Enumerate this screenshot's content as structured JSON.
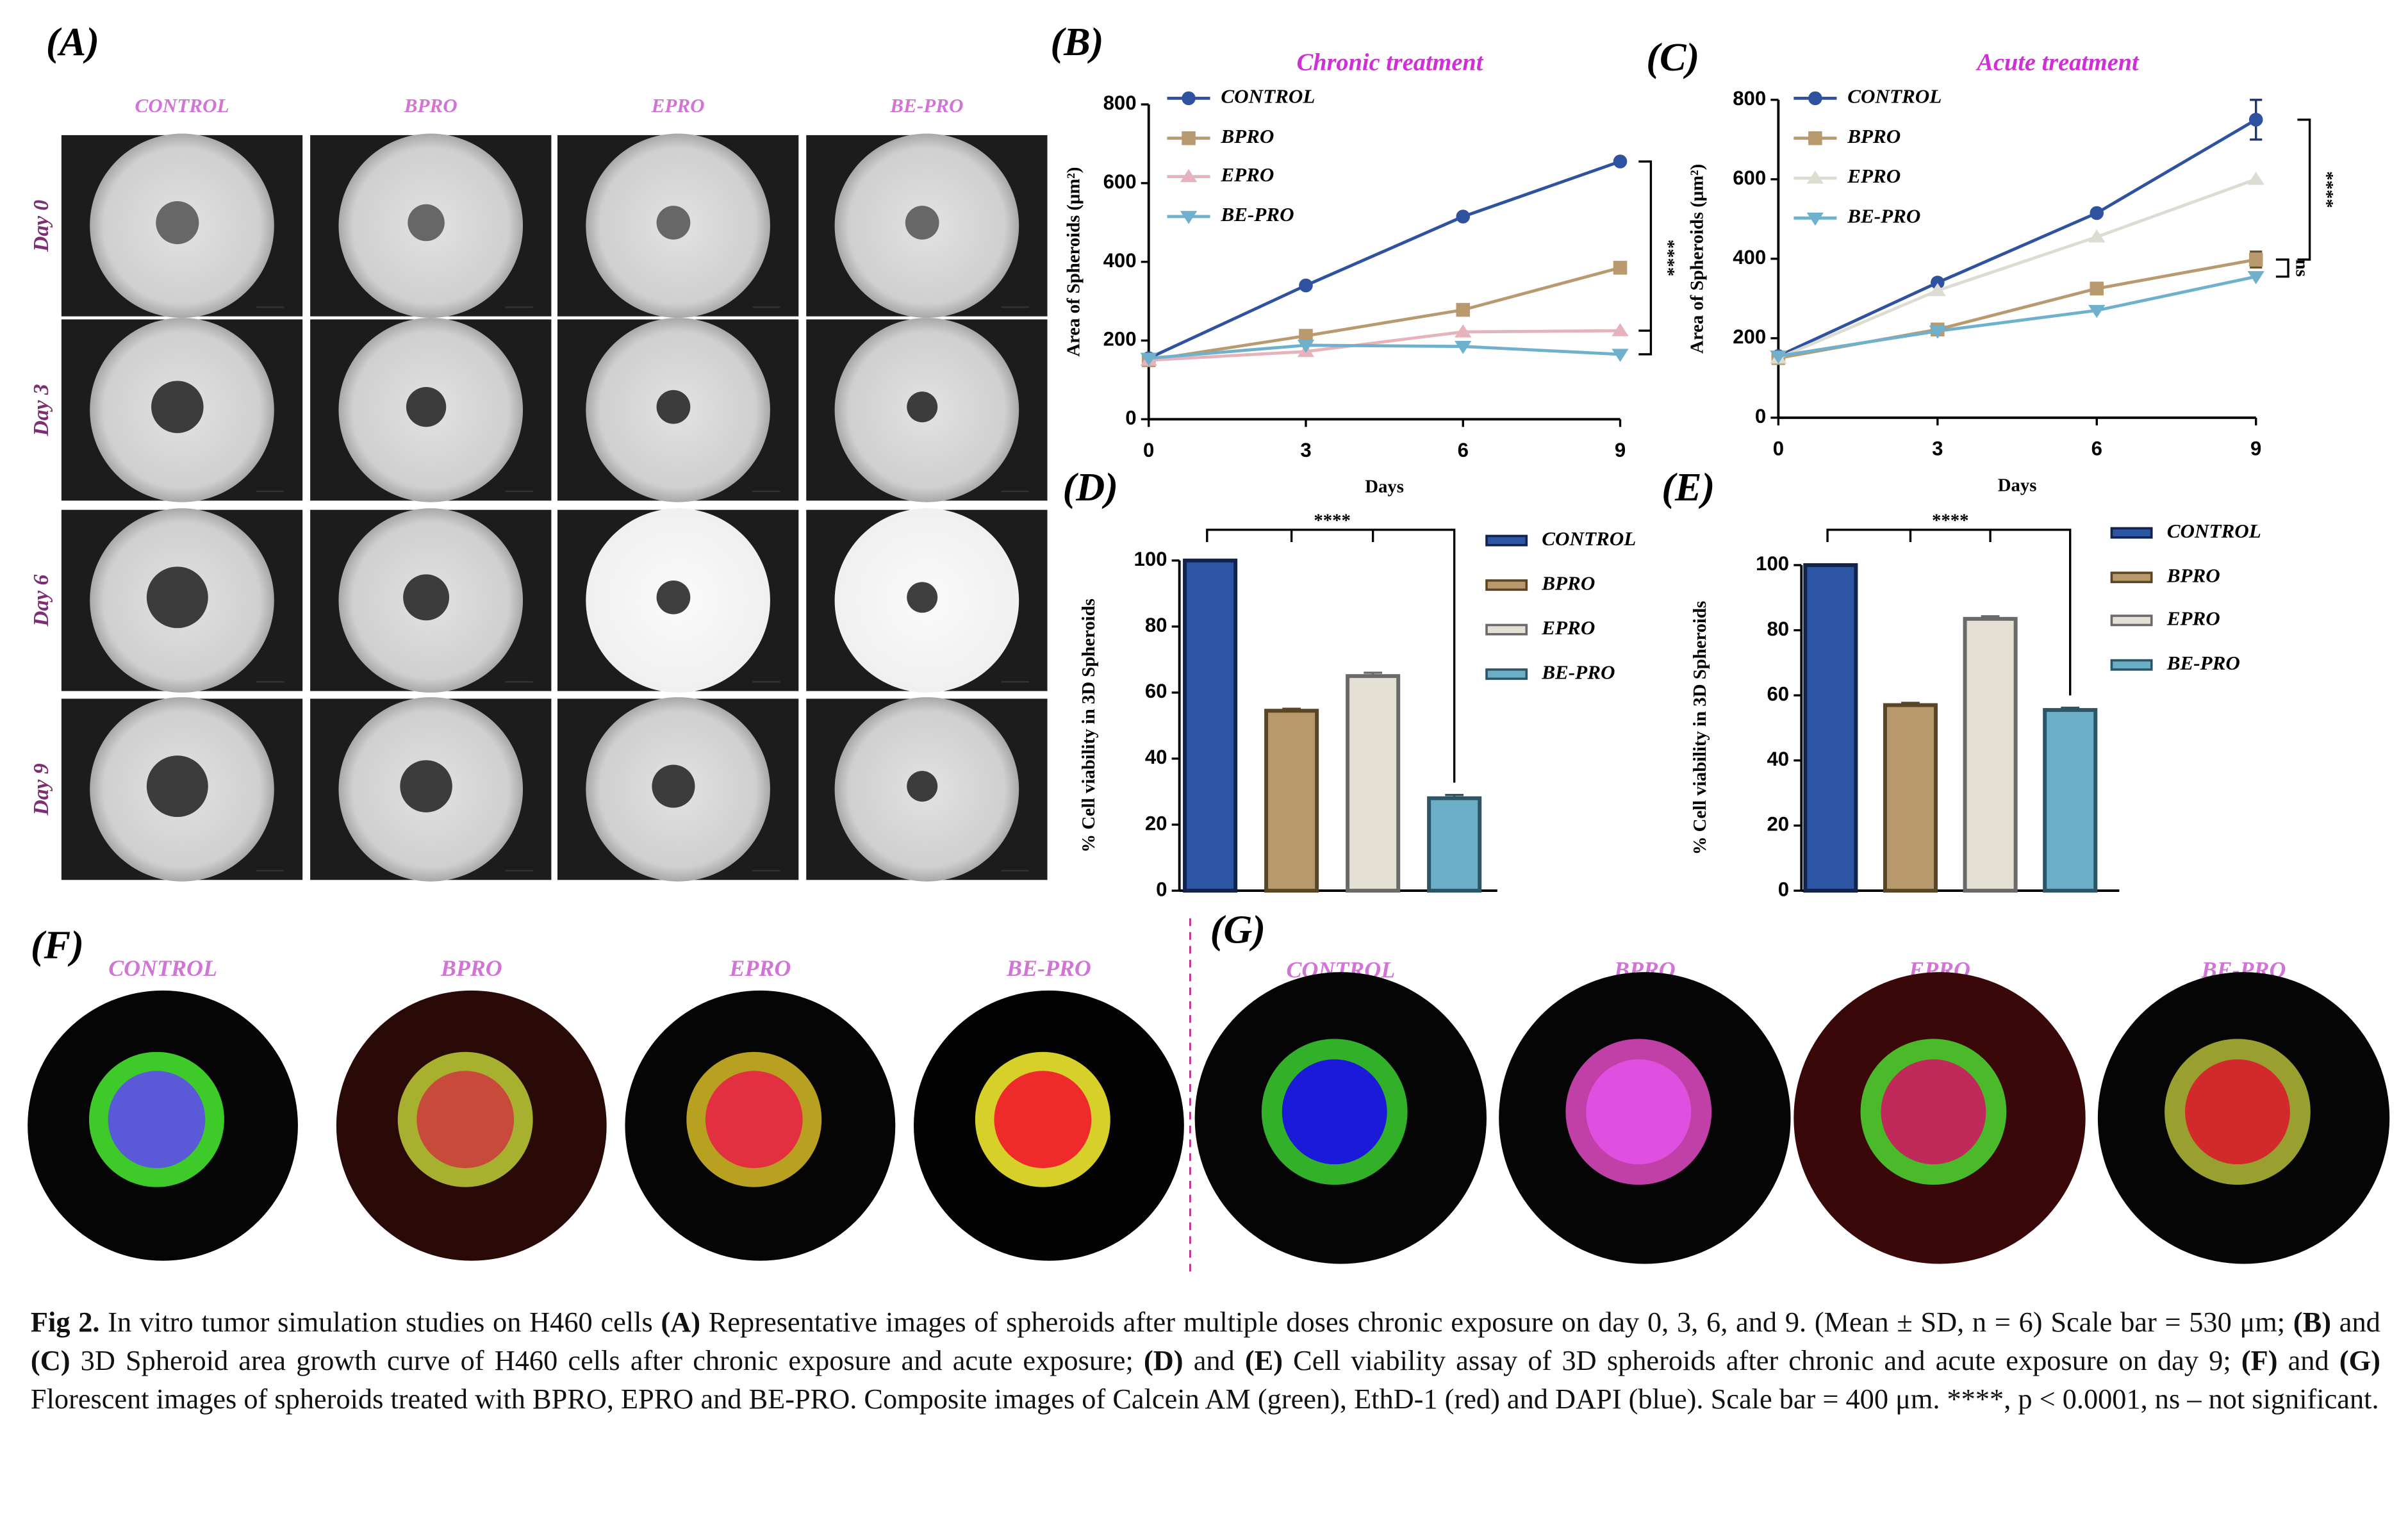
{
  "panels": {
    "A": {
      "label": "(A)",
      "columns": [
        "CONTROL",
        "BPRO",
        "EPRO",
        "BE-PRO"
      ],
      "rows": [
        "Day 0",
        "Day 3",
        "Day 6",
        "Day 9"
      ]
    },
    "F": {
      "label": "(F)",
      "columns": [
        "CONTROL",
        "BPRO",
        "EPRO",
        "BE-PRO"
      ]
    },
    "G": {
      "label": "(G)",
      "columns": [
        "CONTROL",
        "BPRO",
        "EPRO",
        "BE-PRO"
      ]
    }
  },
  "chart_data": [
    {
      "type": "line",
      "panel": "(B)",
      "title": "Chronic treatment",
      "x_label": "Days",
      "y_label": "Area of Spheroids (μm²)",
      "x": [
        0,
        3,
        6,
        9
      ],
      "xlim": [
        0,
        9
      ],
      "xticks": [
        0,
        3,
        6,
        9
      ],
      "ylim": [
        0,
        800
      ],
      "yticks": [
        0,
        200,
        400,
        600,
        800
      ],
      "series": [
        {
          "name": "CONTROL",
          "color": "#2f52a0",
          "marker": "circle",
          "values": [
            155,
            340,
            515,
            655
          ]
        },
        {
          "name": "BPRO",
          "color": "#b89a6e",
          "marker": "square",
          "values": [
            150,
            212,
            278,
            385
          ]
        },
        {
          "name": "EPRO",
          "color": "#e6b3bd",
          "marker": "triangle",
          "values": [
            150,
            172,
            222,
            225
          ]
        },
        {
          "name": "BE-PRO",
          "color": "#6fb0cc",
          "marker": "triangle-down",
          "values": [
            155,
            188,
            185,
            165
          ]
        }
      ],
      "annotations": [
        "****"
      ]
    },
    {
      "type": "line",
      "panel": "(C)",
      "title": "Acute treatment",
      "x_label": "Days",
      "y_label": "Area of Spheroids (μm²)",
      "x": [
        0,
        3,
        6,
        9
      ],
      "xlim": [
        0,
        9
      ],
      "xticks": [
        0,
        3,
        6,
        9
      ],
      "ylim": [
        0,
        800
      ],
      "yticks": [
        0,
        200,
        400,
        600,
        800
      ],
      "series": [
        {
          "name": "CONTROL",
          "color": "#2f52a0",
          "marker": "circle",
          "values": [
            155,
            340,
            515,
            750
          ],
          "errors": [
            null,
            null,
            null,
            50
          ]
        },
        {
          "name": "BPRO",
          "color": "#b89a6e",
          "marker": "square",
          "values": [
            150,
            222,
            325,
            398
          ],
          "errors": [
            null,
            null,
            null,
            20
          ]
        },
        {
          "name": "EPRO",
          "color": "#dcdcd2",
          "marker": "triangle",
          "values": [
            150,
            320,
            455,
            600
          ]
        },
        {
          "name": "BE-PRO",
          "color": "#6fb0cc",
          "marker": "triangle-down",
          "values": [
            155,
            218,
            270,
            355
          ]
        }
      ],
      "annotations": [
        "****",
        "ns"
      ]
    },
    {
      "type": "bar",
      "panel": "(D)",
      "y_label": "% Cell viability in 3D Spheroids",
      "categories": [
        "CONTROL",
        "BPRO",
        "EPRO",
        "BE-PRO"
      ],
      "values": [
        100,
        54.5,
        65,
        28
      ],
      "errors": [
        0,
        0.6,
        1,
        1
      ],
      "colors": [
        "#2c55a3",
        "#b8996c",
        "#e4e0d4",
        "#6aaec8"
      ],
      "edge_colors": [
        "#14234a",
        "#5a4526",
        "#6a6a6a",
        "#2c5566"
      ],
      "ylim": [
        0,
        100
      ],
      "yticks": [
        0,
        20,
        40,
        60,
        80,
        100
      ],
      "annotations": [
        "****"
      ]
    },
    {
      "type": "bar",
      "panel": "(E)",
      "y_label": "% Cell viability in 3D Spheroids",
      "categories": [
        "CONTROL",
        "BPRO",
        "EPRO",
        "BE-PRO"
      ],
      "values": [
        100,
        57,
        83.5,
        55.5
      ],
      "errors": [
        0,
        0.7,
        0.8,
        0.7
      ],
      "colors": [
        "#2c55a3",
        "#b8996c",
        "#e4e0d4",
        "#6aaec8"
      ],
      "edge_colors": [
        "#14234a",
        "#5a4526",
        "#6a6a6a",
        "#2c5566"
      ],
      "ylim": [
        0,
        100
      ],
      "yticks": [
        0,
        20,
        40,
        60,
        80,
        100
      ],
      "annotations": [
        "****"
      ]
    }
  ],
  "caption": [
    {
      "text": "Fig 2.",
      "bold": true
    },
    {
      "text": " In vitro tumor simulation studies on H460 cells "
    },
    {
      "text": "(A)",
      "bold": true
    },
    {
      "text": " Representative images of spheroids after multiple doses chronic exposure on day 0, 3, 6, and 9. (Mean ± SD, n = 6) Scale bar = 530 μm; "
    },
    {
      "text": "(B)",
      "bold": true
    },
    {
      "text": " and "
    },
    {
      "text": "(C)",
      "bold": true
    },
    {
      "text": " 3D Spheroid area growth curve of H460 cells after chronic exposure and acute exposure; "
    },
    {
      "text": "(D)",
      "bold": true
    },
    {
      "text": " and "
    },
    {
      "text": "(E)",
      "bold": true
    },
    {
      "text": " Cell viability assay of 3D spheroids after chronic and acute exposure on day 9; "
    },
    {
      "text": "(F)",
      "bold": true
    },
    {
      "text": " and "
    },
    {
      "text": "(G)",
      "bold": true
    },
    {
      "text": " Florescent images of spheroids treated with BPRO, EPRO and BE-PRO. Composite images of Calcein AM (green), EthD-1 (red) and DAPI (blue). Scale bar = 400 μm. ****, p < 0.0001, ns – not significant."
    }
  ]
}
